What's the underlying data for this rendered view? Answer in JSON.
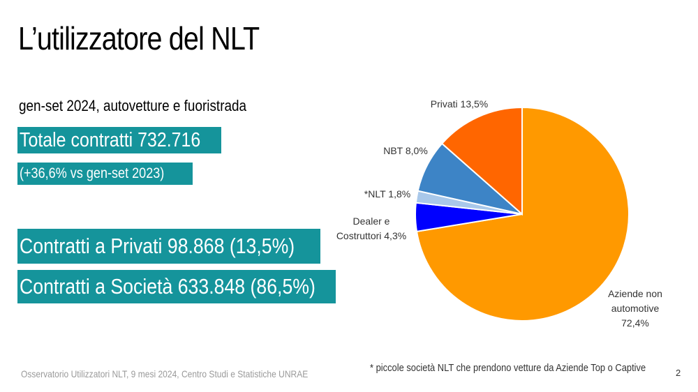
{
  "slide": {
    "title": "L’utilizzatore del NLT",
    "subtitle": "gen-set 2024, autovetture e fuoristrada",
    "total": "Totale contratti 732.716",
    "delta": "(+36,6% vs  gen-set 2023)",
    "privati": "Contratti a Privati  98.868 (13,5%)",
    "societa": "Contratti a Società 633.848 (86,5%)",
    "footer": "Osservatorio Utilizzatori NLT, 9 mesi 2024, Centro Studi e Statistiche UNRAE",
    "footnote": "* piccole società NLT che prendono vetture da Aziende Top o Captive",
    "page_number": "2"
  },
  "colors": {
    "teal_box": "#15949b",
    "aziende": "#ff9900",
    "dealer": "#0000ff",
    "nlt_small": "#a9c8ea",
    "nbt": "#3d84c6",
    "privati": "#ff6600"
  },
  "chart_data": {
    "type": "pie",
    "title": "",
    "slices": [
      {
        "label_lines": [
          "Aziende non",
          "automotive",
          "72,4%"
        ],
        "value": 72.4,
        "color": "#ff9900"
      },
      {
        "label_lines": [
          "Dealer e",
          "Costruttori 4,3%"
        ],
        "value": 4.3,
        "color": "#0000ff"
      },
      {
        "label_lines": [
          "*NLT 1,8%"
        ],
        "value": 1.8,
        "color": "#a9c8ea"
      },
      {
        "label_lines": [
          "NBT 8,0%"
        ],
        "value": 8.0,
        "color": "#3d84c6"
      },
      {
        "label_lines": [
          "Privati 13,5%"
        ],
        "value": 13.5,
        "color": "#ff6600"
      }
    ]
  }
}
